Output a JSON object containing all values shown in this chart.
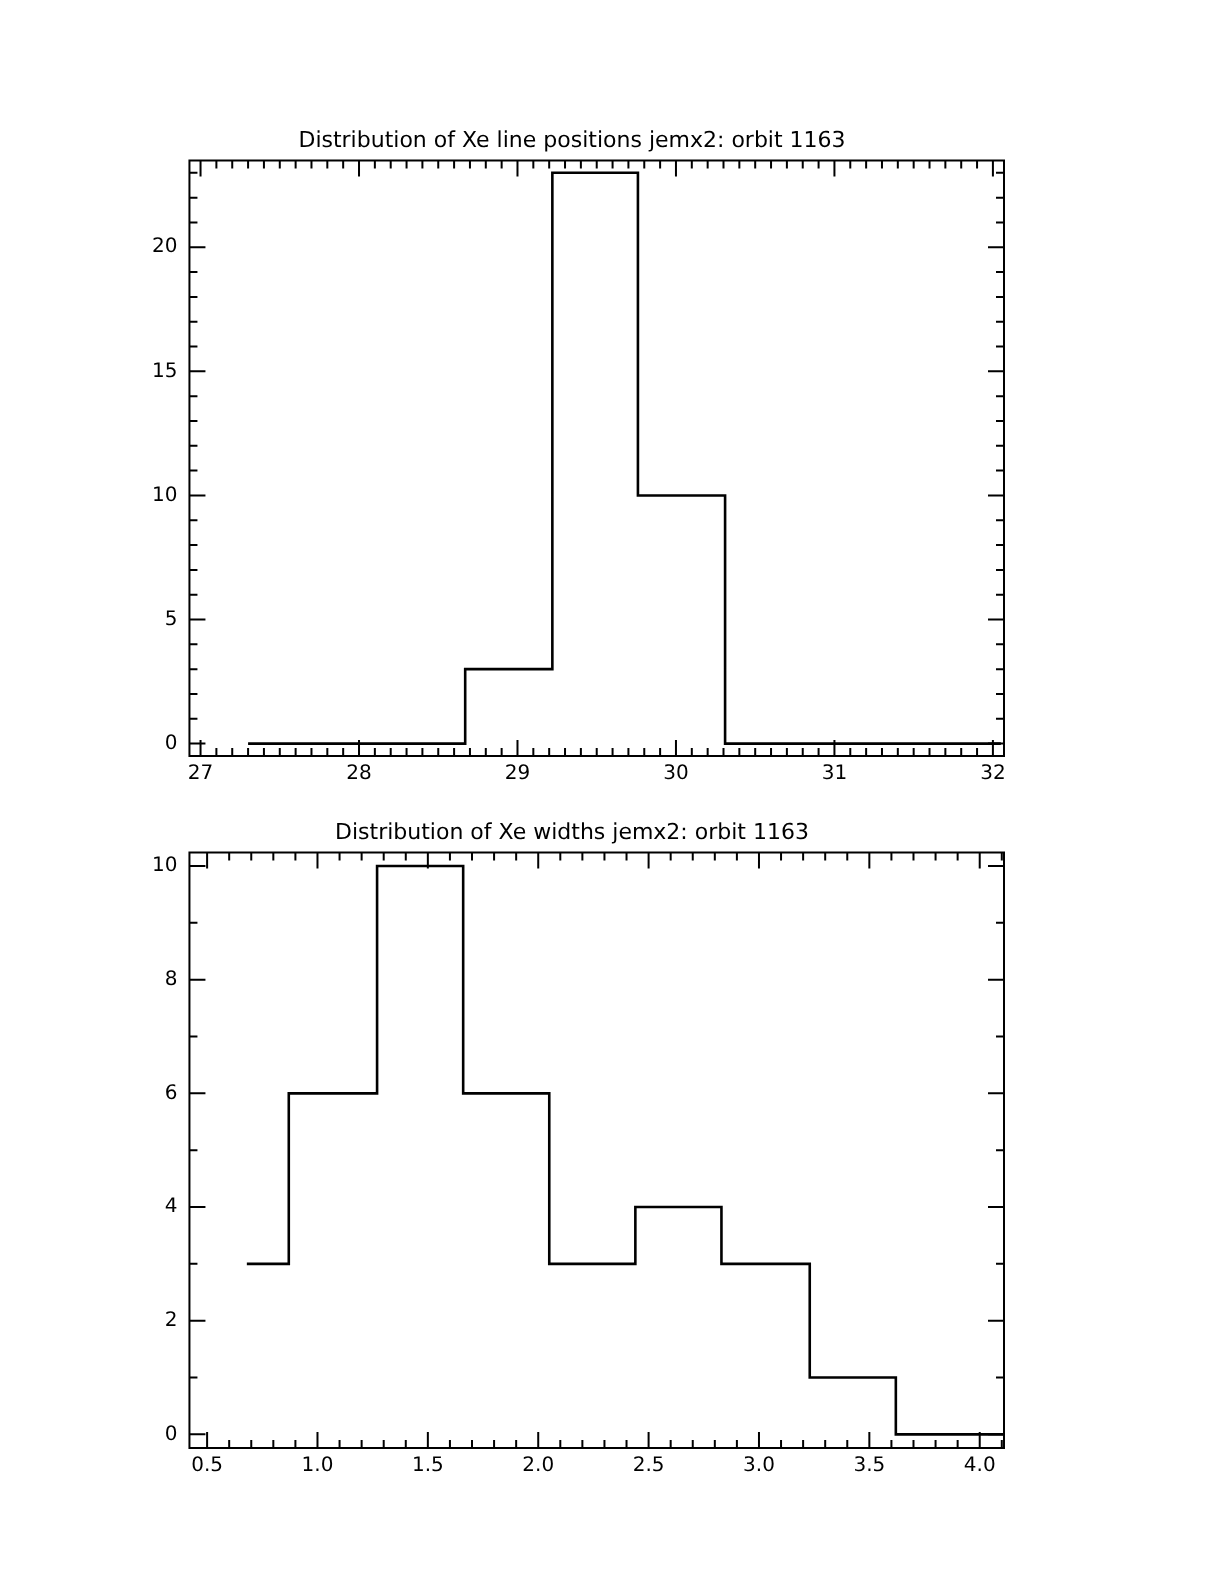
{
  "chart_data": [
    {
      "type": "histogram",
      "title": "Distribution of Xe line positions jemx2: orbit 1163",
      "bins": [
        27.3,
        28.67,
        29.22,
        29.76,
        30.31,
        32.05
      ],
      "values": [
        0,
        3,
        23,
        10,
        0
      ],
      "color": "#000000",
      "xlim": [
        26.93,
        32.07
      ],
      "ylim": [
        -0.5,
        23.5
      ],
      "xticks": [
        27,
        28,
        29,
        30,
        31,
        32
      ],
      "yticks": [
        0,
        5,
        10,
        15,
        20
      ]
    },
    {
      "type": "histogram",
      "title": "Distribution of Xe widths jemx2: orbit 1163",
      "bins": [
        0.68,
        0.87,
        1.27,
        1.66,
        2.05,
        2.44,
        2.83,
        3.23,
        3.62,
        4.11
      ],
      "values": [
        3,
        6,
        10,
        6,
        3,
        4,
        3,
        1,
        0
      ],
      "color": "#000000",
      "xlim": [
        0.42,
        4.11
      ],
      "ylim": [
        -0.24,
        10.24
      ],
      "xticks": [
        {
          "value": 0.5,
          "label": "0.5"
        },
        {
          "value": 1,
          "label": "1.0"
        },
        {
          "value": 1.5,
          "label": "1.5"
        },
        {
          "value": 2,
          "label": "2.0"
        },
        {
          "value": 2.5,
          "label": "2.5"
        },
        {
          "value": 3,
          "label": "3.0"
        },
        {
          "value": 3.5,
          "label": "3.5"
        },
        {
          "value": 4,
          "label": "4.0"
        }
      ],
      "yticks": [
        0,
        2,
        4,
        6,
        8,
        10
      ]
    }
  ]
}
